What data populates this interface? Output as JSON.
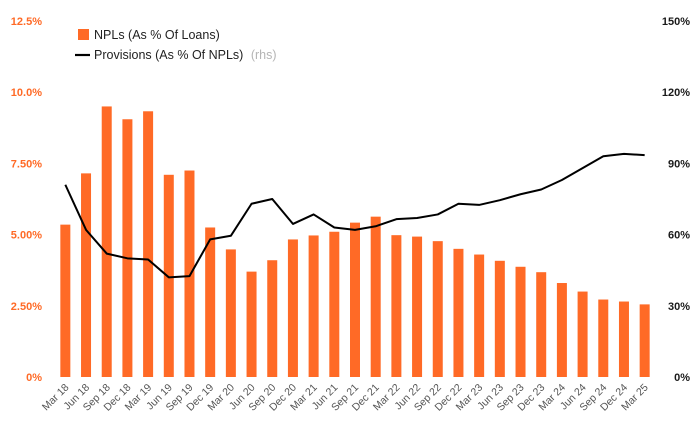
{
  "chart_data": {
    "type": "bar",
    "categories": [
      "Mar 18",
      "Jun 18",
      "Sep 18",
      "Dec 18",
      "Mar 19",
      "Jun 19",
      "Sep 19",
      "Dec 19",
      "Mar 20",
      "Jun 20",
      "Sep 20",
      "Dec 20",
      "Mar 21",
      "Jun 21",
      "Sep 21",
      "Dec 21",
      "Mar 22",
      "Jun 22",
      "Sep 22",
      "Dec 22",
      "Mar 23",
      "Jun 23",
      "Sep 23",
      "Dec 23",
      "Mar 24",
      "Jun 24",
      "Sep 24",
      "Dec 24",
      "Mar 25"
    ],
    "series": [
      {
        "name": "NPLs (As % Of Loans)",
        "type": "bar",
        "axis": "left",
        "color": "#ff6a26",
        "values": [
          5.35,
          7.15,
          9.5,
          9.05,
          9.33,
          7.1,
          7.25,
          5.25,
          4.48,
          3.7,
          4.1,
          4.83,
          4.97,
          5.1,
          5.42,
          5.63,
          4.98,
          4.93,
          4.77,
          4.5,
          4.3,
          4.08,
          3.87,
          3.68,
          3.3,
          3.0,
          2.72,
          2.65,
          2.55
        ]
      },
      {
        "name": "Provisions (As % Of NPLs)",
        "name_suffix": "(rhs)",
        "type": "line",
        "axis": "right",
        "color": "#000000",
        "values": [
          81,
          62,
          52,
          50,
          49.5,
          42,
          42.5,
          58,
          59.5,
          73,
          75,
          64.5,
          68.5,
          63,
          62,
          63.5,
          66.5,
          67,
          68.5,
          73,
          72.5,
          74.5,
          77,
          79,
          83,
          88,
          93,
          94,
          93.5
        ]
      }
    ],
    "y_left": {
      "ylim": [
        0,
        12.5
      ],
      "ticks": [
        0,
        2.5,
        5,
        7.5,
        10,
        12.5
      ],
      "tick_labels": [
        "0%",
        "2.50%",
        "5.00%",
        "7.50%",
        "10.0%",
        "12.5%"
      ]
    },
    "y_right": {
      "ylim": [
        0,
        150
      ],
      "ticks": [
        0,
        30,
        60,
        90,
        120,
        150
      ],
      "tick_labels": [
        "0%",
        "30%",
        "60%",
        "90%",
        "120%",
        "150%"
      ]
    },
    "legend_position": "top-left",
    "grid": false
  },
  "colors": {
    "bar": "#ff6a26",
    "line": "#000000",
    "left_axis_text": "#ff6a26",
    "right_axis_text": "#1a1a1a"
  }
}
